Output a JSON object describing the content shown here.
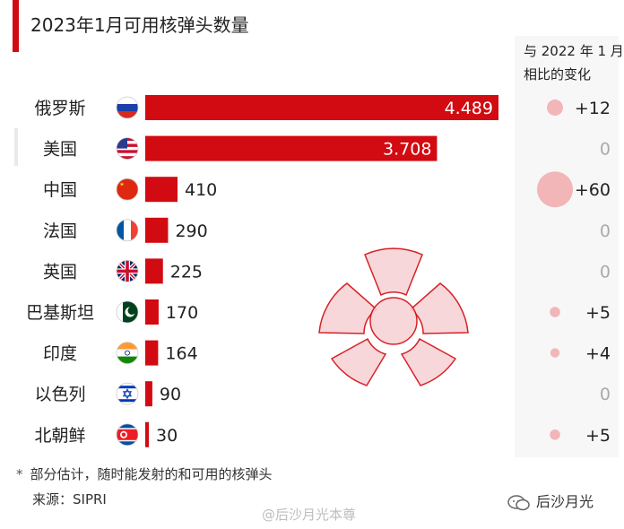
{
  "title": "2023年1月可用核弹头数量",
  "change_header": {
    "line1": "与 2022 年 1 月",
    "line2": "相比的变化"
  },
  "chart_data": {
    "type": "bar",
    "orientation": "horizontal",
    "title": "2023年1月可用核弹头数量",
    "categories": [
      "俄罗斯",
      "美国",
      "中国",
      "法国",
      "英国",
      "巴基斯坦",
      "印度",
      "以色列",
      "北朝鲜"
    ],
    "values": [
      4489,
      3708,
      410,
      290,
      225,
      170,
      164,
      90,
      30
    ],
    "value_labels": [
      "4.489",
      "3.708",
      "410",
      "290",
      "225",
      "170",
      "164",
      "90",
      "30"
    ],
    "change_values": [
      12,
      0,
      60,
      0,
      0,
      5,
      4,
      0,
      5
    ],
    "change_labels": [
      "+12",
      "0",
      "+60",
      "0",
      "0",
      "+5",
      "+4",
      "0",
      "+5"
    ],
    "flag_icons": [
      "russia-flag-icon",
      "usa-flag-icon",
      "china-flag-icon",
      "france-flag-icon",
      "uk-flag-icon",
      "pakistan-flag-icon",
      "india-flag-icon",
      "israel-flag-icon",
      "north-korea-flag-icon"
    ],
    "bar_color": "#d20a11",
    "bubble_color": "#f2b5b8"
  },
  "footnote_marker": "*",
  "footnote": "部分估计，随时能发射的和可用的核弹头",
  "source": "来源：SIPRI",
  "watermark": "@后沙月光本尊",
  "brand": "后沙月光"
}
